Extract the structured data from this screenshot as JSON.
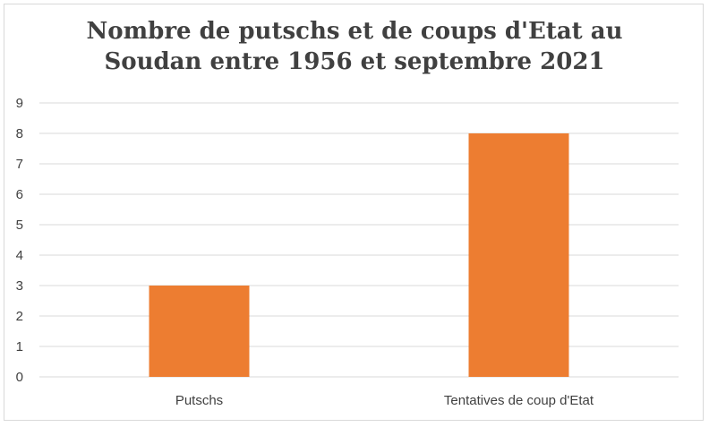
{
  "chart_data": {
    "type": "bar",
    "title_lines": [
      "Nombre de putschs et de coups d'Etat au",
      "Soudan entre 1956 et septembre 2021"
    ],
    "categories": [
      "Putschs",
      "Tentatives de coup d'Etat"
    ],
    "values": [
      3,
      8
    ],
    "ylim": [
      0,
      9
    ],
    "yticks": [
      0,
      1,
      2,
      3,
      4,
      5,
      6,
      7,
      8,
      9
    ],
    "grid": true,
    "bar_color": "#ed7d31",
    "grid_color": "#d9d9d9"
  }
}
